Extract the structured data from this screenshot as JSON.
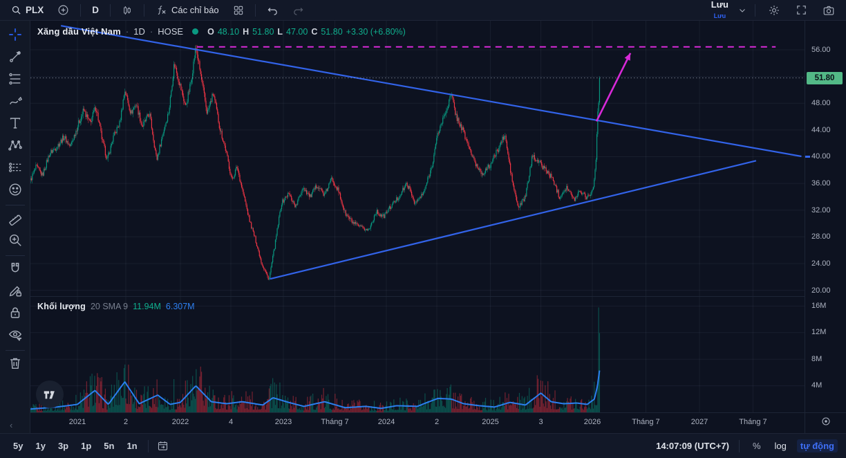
{
  "topbar": {
    "symbol": "PLX",
    "interval": "D",
    "indicators_label": "Các chỉ báo",
    "save_label": "Lưu",
    "save_sub_label": "Lưu",
    "left_icons": [
      "search-icon",
      "plus-circle-icon",
      "candles-icon",
      "fx-icon",
      "layout-grid-icon",
      "undo-icon",
      "redo-icon"
    ],
    "right_icons": [
      "chevron-down-icon",
      "gear-icon",
      "fullscreen-icon",
      "camera-icon"
    ]
  },
  "sidebar": {
    "tool_groups": [
      [
        "crosshair",
        "trend-line",
        "fib-retracement",
        "brush",
        "text",
        "xabcd-pattern",
        "long-short-position",
        "emoji"
      ],
      [
        "ruler",
        "zoom-in"
      ],
      [
        "magnet",
        "draw-lock",
        "lock-all",
        "hide-drawings"
      ],
      [
        "trash"
      ]
    ],
    "active_tool": "crosshair"
  },
  "legend": {
    "title": "Xăng dầu Việt Nam",
    "dot": "·",
    "interval": "1D",
    "exchange": "HOSE",
    "o_label": "O",
    "o": "48.10",
    "h_label": "H",
    "h": "51.80",
    "l_label": "L",
    "l": "47.00",
    "c_label": "C",
    "c": "51.80",
    "change": "+3.30 (+6.80%)"
  },
  "volume_legend": {
    "label": "Khối lượng",
    "params": "20 SMA 9",
    "value": "11.94M",
    "ma_value": "6.307M"
  },
  "price_axis": {
    "ticks": [
      "56.00",
      "48.00",
      "44.00",
      "40.00",
      "36.00",
      "32.00",
      "28.00",
      "24.00",
      "20.00"
    ],
    "tick_values": [
      56,
      48,
      44,
      40,
      36,
      32,
      28,
      24,
      20
    ],
    "last_price": "51.80",
    "last_price_value": 51.8
  },
  "volume_axis": {
    "ticks": [
      "16M",
      "12M",
      "8M",
      "4M"
    ],
    "tick_values": [
      16,
      12,
      8,
      4
    ]
  },
  "time_axis": {
    "ticks": [
      {
        "label": "2021",
        "year": 2021.0
      },
      {
        "label": "2",
        "year": 2021.47
      },
      {
        "label": "2022",
        "year": 2022.0
      },
      {
        "label": "4",
        "year": 2022.49
      },
      {
        "label": "2023",
        "year": 2023.0
      },
      {
        "label": "Tháng 7",
        "year": 2023.5
      },
      {
        "label": "2024",
        "year": 2024.0
      },
      {
        "label": "2",
        "year": 2024.49
      },
      {
        "label": "2025",
        "year": 2025.01
      },
      {
        "label": "3",
        "year": 2025.5
      },
      {
        "label": "2026",
        "year": 2026.0
      },
      {
        "label": "Tháng 7",
        "year": 2026.52
      },
      {
        "label": "2027",
        "year": 2027.04
      },
      {
        "label": "Tháng 7",
        "year": 2027.56
      }
    ]
  },
  "bottombar": {
    "ranges": [
      "5y",
      "1y",
      "3p",
      "1p",
      "5n",
      "1n"
    ],
    "goto_icon": "calendar-icon",
    "clock": "14:07:09 (UTC+7)",
    "percent_label": "%",
    "log_label": "log",
    "auto_label": "tự động"
  },
  "colors": {
    "up": "#089981",
    "down": "#f23645",
    "vol_up": "rgba(8,153,129,0.45)",
    "vol_down": "rgba(242,54,69,0.45)",
    "vol_ma": "#2b7ff0",
    "trendline_blue": "#3568f4",
    "magenta": "#d829d8",
    "grid": "rgba(160,175,200,0.08)",
    "badge_bg": "#53b987",
    "accent_blue": "#2962ff"
  },
  "chart_data": {
    "type": "candlestick+volume",
    "symbol": "PLX",
    "title": "Xăng dầu Việt Nam",
    "interval": "1D",
    "exchange": "HOSE",
    "ohlc_today": {
      "open": 48.1,
      "high": 51.8,
      "low": 47.0,
      "close": 51.8,
      "change": 3.3,
      "change_pct": 6.8
    },
    "volume_today_m": 11.94,
    "volume_sma9_m": 6.307,
    "price_axis_range": [
      19.2,
      59.8
    ],
    "volume_axis_range_m": [
      0,
      17.4
    ],
    "time_range_years": [
      2020.545,
      2028.03
    ],
    "candles_end_year": 2026.07,
    "scale_mode": [
      "log",
      "tự động"
    ],
    "price_path": [
      [
        2020.545,
        36.5
      ],
      [
        2020.6,
        38.5
      ],
      [
        2020.66,
        37.2
      ],
      [
        2020.73,
        40.5
      ],
      [
        2020.8,
        41.5
      ],
      [
        2020.87,
        43.0
      ],
      [
        2020.93,
        41.5
      ],
      [
        2021.0,
        44.5
      ],
      [
        2021.06,
        47.0
      ],
      [
        2021.12,
        45.0
      ],
      [
        2021.18,
        47.5
      ],
      [
        2021.24,
        42.5
      ],
      [
        2021.29,
        39.5
      ],
      [
        2021.35,
        43.0
      ],
      [
        2021.41,
        45.0
      ],
      [
        2021.46,
        50.0
      ],
      [
        2021.52,
        46.5
      ],
      [
        2021.57,
        48.0
      ],
      [
        2021.63,
        44.5
      ],
      [
        2021.7,
        46.5
      ],
      [
        2021.77,
        39.5
      ],
      [
        2021.83,
        43.5
      ],
      [
        2021.89,
        47.0
      ],
      [
        2021.94,
        54.0
      ],
      [
        2022.0,
        50.5
      ],
      [
        2022.05,
        47.5
      ],
      [
        2022.1,
        51.0
      ],
      [
        2022.15,
        56.5
      ],
      [
        2022.21,
        51.0
      ],
      [
        2022.26,
        46.5
      ],
      [
        2022.32,
        49.5
      ],
      [
        2022.38,
        44.5
      ],
      [
        2022.44,
        41.0
      ],
      [
        2022.5,
        36.5
      ],
      [
        2022.55,
        38.5
      ],
      [
        2022.61,
        34.5
      ],
      [
        2022.67,
        30.5
      ],
      [
        2022.73,
        27.5
      ],
      [
        2022.79,
        24.0
      ],
      [
        2022.86,
        21.6
      ],
      [
        2022.92,
        27.0
      ],
      [
        2022.98,
        33.0
      ],
      [
        2023.05,
        34.5
      ],
      [
        2023.12,
        32.5
      ],
      [
        2023.19,
        35.5
      ],
      [
        2023.26,
        34.0
      ],
      [
        2023.33,
        35.8
      ],
      [
        2023.4,
        34.2
      ],
      [
        2023.47,
        36.8
      ],
      [
        2023.53,
        35.0
      ],
      [
        2023.6,
        31.5
      ],
      [
        2023.68,
        30.0
      ],
      [
        2023.76,
        29.3
      ],
      [
        2023.83,
        29.0
      ],
      [
        2023.9,
        31.8
      ],
      [
        2023.97,
        31.0
      ],
      [
        2024.04,
        32.5
      ],
      [
        2024.12,
        34.0
      ],
      [
        2024.2,
        36.0
      ],
      [
        2024.28,
        33.0
      ],
      [
        2024.36,
        34.5
      ],
      [
        2024.44,
        38.5
      ],
      [
        2024.5,
        43.5
      ],
      [
        2024.57,
        46.5
      ],
      [
        2024.63,
        49.3
      ],
      [
        2024.68,
        46.0
      ],
      [
        2024.74,
        44.0
      ],
      [
        2024.8,
        41.5
      ],
      [
        2024.86,
        39.0
      ],
      [
        2024.93,
        37.5
      ],
      [
        2025.0,
        38.5
      ],
      [
        2025.08,
        41.0
      ],
      [
        2025.15,
        43.3
      ],
      [
        2025.22,
        36.5
      ],
      [
        2025.28,
        32.3
      ],
      [
        2025.35,
        34.0
      ],
      [
        2025.42,
        40.3
      ],
      [
        2025.49,
        39.0
      ],
      [
        2025.55,
        38.0
      ],
      [
        2025.62,
        36.5
      ],
      [
        2025.68,
        34.0
      ],
      [
        2025.75,
        35.5
      ],
      [
        2025.82,
        33.5
      ],
      [
        2025.88,
        35.0
      ],
      [
        2025.94,
        34.0
      ],
      [
        2025.99,
        34.5
      ],
      [
        2026.02,
        36.5
      ],
      [
        2026.04,
        41.0
      ],
      [
        2026.055,
        48.1
      ],
      [
        2026.07,
        51.8
      ]
    ],
    "volume_ma_path_m": [
      [
        2020.545,
        0.5
      ],
      [
        2020.8,
        0.8
      ],
      [
        2021.0,
        1.2
      ],
      [
        2021.17,
        3.3
      ],
      [
        2021.3,
        1.2
      ],
      [
        2021.46,
        4.6
      ],
      [
        2021.6,
        1.3
      ],
      [
        2021.78,
        2.6
      ],
      [
        2021.9,
        1.2
      ],
      [
        2022.0,
        1.5
      ],
      [
        2022.15,
        4.0
      ],
      [
        2022.3,
        1.6
      ],
      [
        2022.45,
        1.3
      ],
      [
        2022.6,
        1.6
      ],
      [
        2022.8,
        1.1
      ],
      [
        2022.9,
        2.2
      ],
      [
        2023.05,
        1.5
      ],
      [
        2023.2,
        0.9
      ],
      [
        2023.4,
        1.6
      ],
      [
        2023.6,
        0.7
      ],
      [
        2023.8,
        0.9
      ],
      [
        2023.95,
        0.6
      ],
      [
        2024.1,
        1.0
      ],
      [
        2024.3,
        0.9
      ],
      [
        2024.5,
        2.1
      ],
      [
        2024.63,
        2.0
      ],
      [
        2024.75,
        1.3
      ],
      [
        2024.9,
        1.0
      ],
      [
        2025.05,
        0.8
      ],
      [
        2025.2,
        1.5
      ],
      [
        2025.35,
        1.1
      ],
      [
        2025.5,
        2.9
      ],
      [
        2025.6,
        1.6
      ],
      [
        2025.72,
        1.3
      ],
      [
        2025.85,
        1.4
      ],
      [
        2025.95,
        1.2
      ],
      [
        2026.02,
        2.0
      ],
      [
        2026.05,
        4.0
      ],
      [
        2026.07,
        6.3
      ]
    ],
    "volume_spikes_m": [
      [
        2021.17,
        5.5
      ],
      [
        2021.46,
        7.2
      ],
      [
        2021.94,
        5.0
      ],
      [
        2022.15,
        6.5
      ],
      [
        2022.5,
        3.2
      ],
      [
        2022.86,
        3.6
      ],
      [
        2023.5,
        2.8
      ],
      [
        2024.5,
        3.5
      ],
      [
        2024.63,
        4.2
      ],
      [
        2025.15,
        3.0
      ],
      [
        2025.5,
        4.8
      ],
      [
        2026.06,
        15.8
      ],
      [
        2026.07,
        11.94
      ]
    ],
    "drawings": {
      "descending_trendline": {
        "from": [
          2020.84,
          59.6
        ],
        "to": [
          2028.03,
          40.05
        ],
        "color": "#3568f4"
      },
      "ascending_trendline": {
        "from": [
          2022.87,
          21.7
        ],
        "to": [
          2027.59,
          39.4
        ],
        "color": "#3568f4"
      },
      "horizontal_dashed_level": {
        "price": 56.45,
        "from_year": 2022.16,
        "to_year": 2027.78,
        "color": "#d829d8"
      },
      "projection_arrow": {
        "from": [
          2026.04,
          45.3
        ],
        "to": [
          2026.37,
          55.5
        ],
        "color": "#d829d8"
      },
      "last_price_line": {
        "price": 51.8,
        "style": "dotted"
      }
    }
  }
}
